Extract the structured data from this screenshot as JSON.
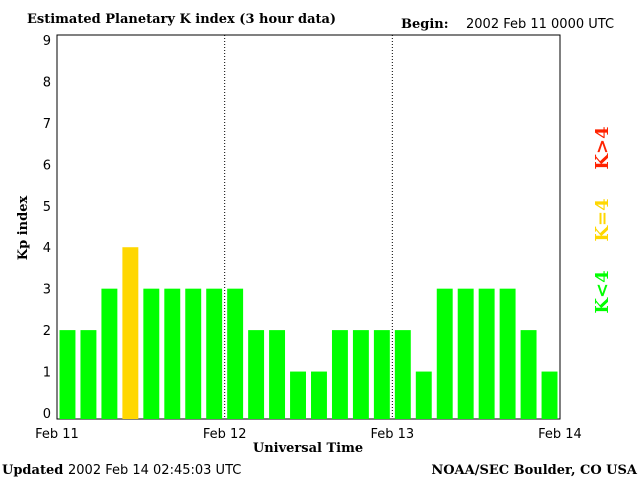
{
  "header": {
    "title": "Estimated Planetary K index (3 hour data)",
    "begin_label": "Begin:",
    "begin_value": "2002 Feb 11 0000 UTC"
  },
  "footer": {
    "updated_label": "Updated",
    "updated_value": "2002 Feb 14 02:45:03 UTC",
    "credit": "NOAA/SEC Boulder, CO USA"
  },
  "legend": {
    "k_greater": "K>4",
    "k_equal": "K=4",
    "k_less": "K<4"
  },
  "colors": {
    "below_4": "#00ff00",
    "equal_4": "#ffd700",
    "above_4": "#ff2200",
    "divider": "#000000"
  },
  "chart_data": {
    "type": "bar",
    "xlabel": "Universal Time",
    "ylabel": "Kp index",
    "ylim": [
      0,
      9
    ],
    "yticks": [
      "0",
      "1",
      "2",
      "3",
      "4",
      "5",
      "6",
      "7",
      "8",
      "9"
    ],
    "xticks": [
      "Feb 11",
      "Feb 12",
      "Feb 13",
      "Feb 14"
    ],
    "day_dividers": [
      "Feb 12",
      "Feb 13"
    ],
    "grid": false,
    "interval_hours": 3,
    "values": [
      2,
      2,
      3,
      4,
      3,
      3,
      3,
      3,
      3,
      2,
      2,
      1,
      1,
      2,
      2,
      2,
      2,
      1,
      3,
      3,
      3,
      3,
      2,
      1
    ]
  }
}
